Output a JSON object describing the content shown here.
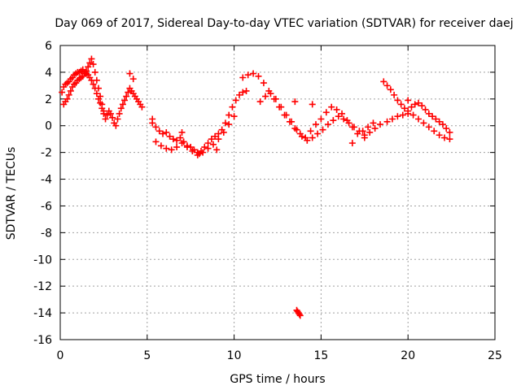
{
  "chart_data": {
    "type": "scatter",
    "title": "Day 069 of 2017, Sidereal Day-to-day VTEC variation (SDTVAR) for receiver daej",
    "xlabel": "GPS time / hours",
    "ylabel": "SDTVAR / TECUs",
    "xlim": [
      0,
      25
    ],
    "ylim": [
      -16,
      6
    ],
    "x_ticks": [
      0,
      5,
      10,
      15,
      20,
      25
    ],
    "y_ticks": [
      6,
      4,
      2,
      0,
      -2,
      -4,
      -6,
      -8,
      -10,
      -12,
      -14,
      -16
    ],
    "grid": true,
    "marker": "+",
    "color": "#ff0000",
    "series": [
      {
        "name": "SDTVAR",
        "x": [
          0.1,
          0.2,
          0.3,
          0.4,
          0.5,
          0.6,
          0.7,
          0.8,
          0.9,
          1.0,
          1.1,
          1.2,
          1.3,
          1.4,
          1.5,
          1.6,
          1.7,
          1.8,
          1.9,
          2.0,
          2.1,
          2.2,
          2.3,
          2.4,
          2.5,
          2.6,
          2.7,
          2.8,
          2.9,
          3.0,
          3.1,
          3.2,
          3.3,
          3.4,
          3.5,
          3.6,
          3.7,
          3.8,
          3.9,
          4.0,
          4.1,
          4.2,
          4.3,
          4.4,
          4.5,
          4.6,
          4.7,
          0.2,
          0.3,
          0.4,
          0.5,
          0.6,
          0.7,
          0.8,
          0.9,
          1.0,
          1.1,
          1.2,
          1.3,
          1.4,
          1.5,
          1.6,
          1.7,
          1.8,
          1.9,
          2.0,
          2.1,
          2.2,
          2.3,
          2.4,
          2.5,
          5.3,
          5.5,
          5.7,
          5.9,
          6.1,
          6.3,
          6.5,
          6.7,
          6.9,
          7.1,
          7.3,
          7.5,
          7.7,
          7.9,
          8.1,
          8.3,
          8.5,
          8.7,
          8.9,
          9.1,
          9.3,
          9.5,
          9.7,
          9.9,
          10.1,
          10.3,
          10.5,
          10.7,
          5.5,
          5.8,
          6.1,
          6.4,
          6.7,
          7.0,
          7.3,
          7.6,
          7.9,
          8.2,
          8.5,
          8.8,
          9.1,
          9.4,
          9.7,
          10.0,
          10.5,
          10.8,
          11.1,
          11.4,
          11.7,
          12.0,
          12.3,
          12.6,
          12.9,
          13.2,
          13.5,
          13.8,
          14.1,
          14.4,
          14.7,
          15.0,
          15.3,
          15.6,
          15.9,
          16.2,
          16.5,
          16.8,
          17.1,
          17.4,
          17.7,
          18.0,
          11.5,
          11.8,
          12.1,
          12.4,
          12.7,
          13.0,
          13.3,
          13.6,
          13.9,
          14.2,
          14.5,
          14.8,
          15.1,
          15.4,
          15.7,
          16.0,
          16.3,
          16.6,
          16.9,
          17.2,
          17.5,
          17.8,
          18.1,
          18.4,
          13.6,
          13.65,
          13.7,
          13.75,
          13.8,
          18.6,
          18.8,
          19.0,
          19.2,
          19.4,
          19.6,
          19.8,
          20.0,
          20.2,
          20.4,
          20.6,
          20.8,
          21.0,
          21.2,
          21.4,
          21.6,
          21.8,
          22.0,
          22.2,
          22.4,
          18.8,
          19.1,
          19.4,
          19.7,
          20.0,
          20.3,
          20.6,
          20.9,
          21.2,
          21.5,
          21.8,
          22.1,
          22.4,
          4.0,
          4.2,
          5.3,
          7.0,
          8.0,
          9.0,
          13.5,
          14.5,
          16.8,
          17.5,
          20.0
        ],
        "y": [
          2.5,
          2.9,
          3.1,
          3.2,
          3.3,
          3.5,
          3.6,
          3.8,
          3.9,
          4.0,
          4.0,
          4.1,
          4.2,
          4.0,
          3.9,
          3.8,
          3.6,
          3.4,
          3.1,
          2.8,
          2.4,
          2.0,
          1.7,
          1.3,
          0.9,
          0.5,
          0.8,
          1.1,
          0.9,
          0.6,
          0.2,
          0.0,
          0.5,
          0.9,
          1.3,
          1.6,
          1.9,
          2.2,
          2.5,
          2.8,
          2.6,
          2.4,
          2.2,
          2.0,
          1.8,
          1.6,
          1.4,
          1.6,
          1.8,
          2.0,
          2.3,
          2.6,
          2.9,
          3.1,
          3.2,
          3.4,
          3.5,
          3.6,
          3.7,
          3.9,
          4.1,
          4.4,
          4.7,
          5.0,
          4.6,
          4.0,
          3.4,
          2.8,
          2.2,
          1.6,
          1.1,
          0.2,
          -0.1,
          -0.4,
          -0.6,
          -0.5,
          -0.8,
          -1.0,
          -1.1,
          -0.9,
          -1.2,
          -1.5,
          -1.6,
          -1.8,
          -2.0,
          -1.9,
          -1.6,
          -1.3,
          -1.0,
          -0.8,
          -0.6,
          -0.3,
          0.2,
          0.8,
          1.4,
          1.9,
          2.3,
          2.5,
          2.6,
          -1.2,
          -1.5,
          -1.7,
          -1.8,
          -1.6,
          -1.3,
          -1.6,
          -1.9,
          -2.2,
          -2.0,
          -1.7,
          -1.4,
          -1.0,
          -0.5,
          0.1,
          0.7,
          3.6,
          3.8,
          3.9,
          3.7,
          3.2,
          2.6,
          2.0,
          1.4,
          0.8,
          0.3,
          -0.2,
          -0.6,
          -0.9,
          -0.4,
          0.1,
          0.5,
          1.0,
          1.4,
          1.2,
          0.9,
          0.4,
          -0.1,
          -0.6,
          -0.4,
          -0.1,
          0.2,
          1.8,
          2.2,
          2.4,
          2.0,
          1.4,
          0.8,
          0.3,
          -0.3,
          -0.8,
          -1.1,
          -0.9,
          -0.6,
          -0.3,
          0.1,
          0.4,
          0.7,
          0.5,
          0.2,
          -0.1,
          -0.4,
          -0.7,
          -0.5,
          -0.2,
          0.1,
          -13.8,
          -13.9,
          -14.0,
          -14.1,
          -14.2,
          3.3,
          3.0,
          2.7,
          2.3,
          1.9,
          1.6,
          1.3,
          1.1,
          1.4,
          1.6,
          1.7,
          1.5,
          1.2,
          0.9,
          0.7,
          0.5,
          0.3,
          0.1,
          -0.2,
          -0.5,
          0.3,
          0.5,
          0.7,
          0.8,
          0.9,
          0.8,
          0.5,
          0.2,
          -0.1,
          -0.4,
          -0.7,
          -0.9,
          -1.0,
          3.9,
          3.5,
          0.5,
          -0.5,
          -2.1,
          -1.8,
          1.8,
          1.6,
          -1.3,
          -0.9,
          1.9
        ]
      }
    ]
  }
}
